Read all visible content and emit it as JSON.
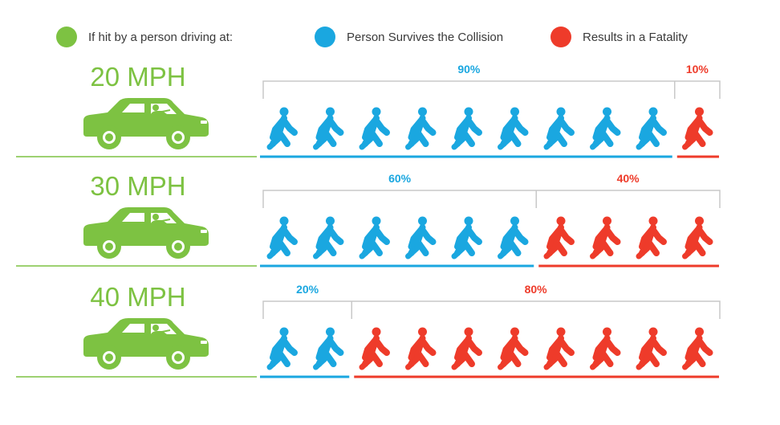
{
  "legend": {
    "car": {
      "label": "If hit by a person driving at:",
      "color": "#7dc242",
      "icon": "circle"
    },
    "survive": {
      "label": "Person Survives the Collision",
      "color": "#1aa7e0",
      "icon": "circle"
    },
    "fatal": {
      "label": "Results in a Fatality",
      "color": "#ee3b2a",
      "icon": "circle"
    }
  },
  "chart_data": {
    "type": "pictogram",
    "icons_per_row": 10,
    "icon": "walking-person-icon",
    "rows": [
      {
        "label": "20 MPH",
        "survive_pct": "90%",
        "fatal_pct": "10%",
        "survive_count": 9,
        "fatal_count": 1
      },
      {
        "label": "30 MPH",
        "survive_pct": "60%",
        "fatal_pct": "40%",
        "survive_count": 6,
        "fatal_count": 4
      },
      {
        "label": "40 MPH",
        "survive_pct": "20%",
        "fatal_pct": "80%",
        "survive_count": 2,
        "fatal_count": 8
      }
    ],
    "colors": {
      "car": "#7dc242",
      "survive": "#1aa7e0",
      "fatal": "#ee3b2a",
      "bracket": "#c8c8c8"
    }
  }
}
